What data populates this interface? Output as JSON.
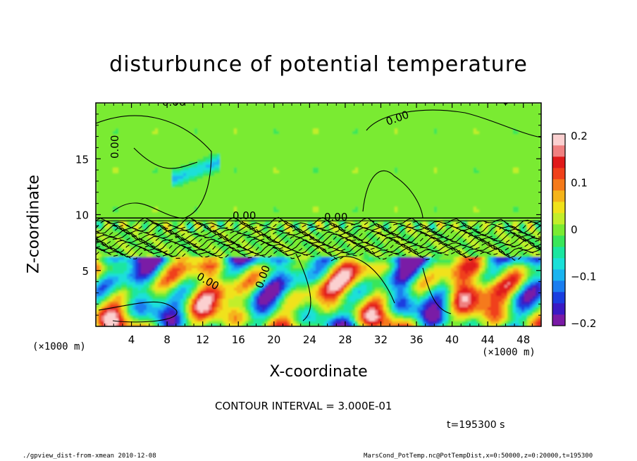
{
  "chart_data": {
    "type": "heatmap",
    "title": "disturbunce of potential temperature",
    "xlabel": "X-coordinate",
    "ylabel": "Z-coordinate",
    "x_unit_label": "(×1000 m)",
    "xlim": [
      0,
      50
    ],
    "ylim": [
      0,
      20
    ],
    "x_ticks": [
      "4",
      "8",
      "12",
      "16",
      "20",
      "24",
      "28",
      "32",
      "36",
      "40",
      "44",
      "48"
    ],
    "y_ticks": [
      "5",
      "10",
      "15"
    ],
    "colorbar": {
      "range": [
        -0.2,
        0.2
      ],
      "ticks": [
        "0.2",
        "0.1",
        "0",
        "−0.1",
        "−0.2"
      ],
      "colors": [
        "#7a1aa6",
        "#3a1ac4",
        "#1a3ee0",
        "#1a7df0",
        "#1ab4f0",
        "#1ae0d8",
        "#1ae6a0",
        "#39e65a",
        "#7aeb32",
        "#c2ee2a",
        "#f0e21a",
        "#f5b41a",
        "#f57a1a",
        "#f0401a",
        "#e01a1a",
        "#f08080",
        "#fbd0d0"
      ]
    },
    "contour_labels": [
      "0.00",
      "0.00",
      "0.00",
      "0.00",
      "0.00",
      "0.00",
      "0.00",
      "0.00"
    ],
    "contour_interval_text": "CONTOUR INTERVAL = 3.000E-01",
    "time_text": "t=195300 s"
  },
  "footer": {
    "left": "./gpview_dist-from-xmean  2010-12-08",
    "right": "MarsCond_PotTemp.nc@PotTempDist,x=0:50000,z=0:20000,t=195300"
  }
}
